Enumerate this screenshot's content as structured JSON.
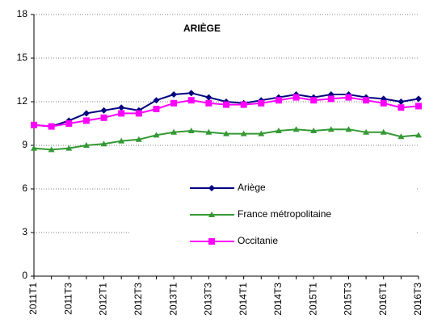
{
  "chart_data": {
    "type": "line",
    "title": "ARIÈGE",
    "categories": [
      "2011T1",
      null,
      "2011T3",
      null,
      "2012T1",
      null,
      "2012T3",
      null,
      "2013T1",
      null,
      "2013T3",
      null,
      "2014T1",
      null,
      "2014T3",
      null,
      "2015T1",
      null,
      "2015T3",
      null,
      "2016T1",
      null,
      "2016T3"
    ],
    "series": [
      {
        "name": "Ariège",
        "color": "#000080",
        "marker": "diamond",
        "values": [
          10.4,
          10.3,
          10.7,
          11.2,
          11.4,
          11.6,
          11.4,
          12.1,
          12.5,
          12.6,
          12.3,
          12.0,
          11.9,
          12.1,
          12.3,
          12.5,
          12.3,
          12.5,
          12.5,
          12.3,
          12.2,
          12.0,
          12.2
        ]
      },
      {
        "name": "France métropolitaine",
        "color": "#339933",
        "marker": "triangle",
        "values": [
          8.8,
          8.7,
          8.8,
          9.0,
          9.1,
          9.3,
          9.4,
          9.7,
          9.9,
          10.0,
          9.9,
          9.8,
          9.8,
          9.8,
          10.0,
          10.1,
          10.0,
          10.1,
          10.1,
          9.9,
          9.9,
          9.6,
          9.7
        ]
      },
      {
        "name": "Occitanie",
        "color": "#ff00ff",
        "marker": "square",
        "values": [
          10.4,
          10.3,
          10.5,
          10.7,
          10.9,
          11.2,
          11.2,
          11.5,
          11.9,
          12.1,
          11.9,
          11.8,
          11.8,
          11.9,
          12.1,
          12.3,
          12.1,
          12.2,
          12.3,
          12.1,
          11.9,
          11.6,
          11.7
        ]
      }
    ],
    "ylim": [
      0,
      18
    ],
    "yticks": [
      0,
      3,
      6,
      9,
      12,
      15,
      18
    ],
    "grid": true
  }
}
